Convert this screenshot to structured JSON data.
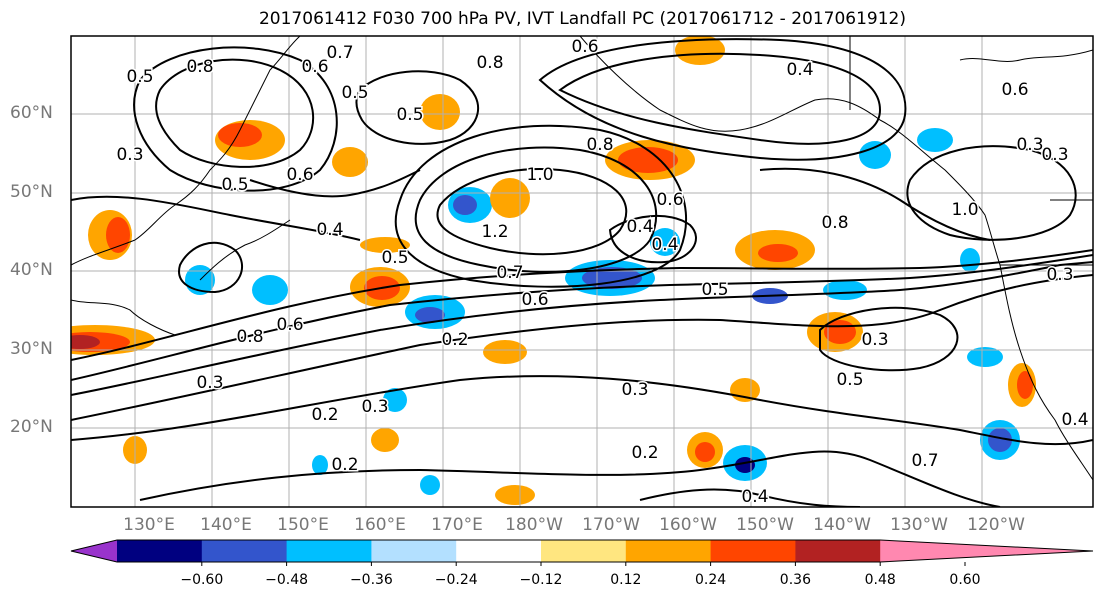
{
  "title": "2017061412 F030 700 hPa PV, IVT Landfall PC (2017061712 - 2017061912)",
  "map": {
    "region": "North Pacific",
    "lon_labels": [
      "130°E",
      "140°E",
      "150°E",
      "160°E",
      "170°E",
      "180°W",
      "170°W",
      "160°W",
      "150°W",
      "140°W",
      "130°W",
      "120°W"
    ],
    "lat_labels": [
      "60°N",
      "50°N",
      "40°N",
      "30°N",
      "20°N"
    ],
    "contour_labels": [
      "0.3",
      "0.5",
      "0.8",
      "0.7",
      "0.6",
      "0.5",
      "0.8",
      "0.5",
      "0.6",
      "0.4",
      "0.6",
      "0.3",
      "0.5",
      "0.4",
      "0.6",
      "0.8",
      "0.4",
      "1.0",
      "1.2",
      "0.6",
      "0.4",
      "0.7",
      "0.8",
      "1.0",
      "0.5",
      "0.6",
      "0.5",
      "0.2",
      "0.8",
      "0.6",
      "0.3",
      "0.3",
      "0.5",
      "0.2",
      "0.3",
      "0.2",
      "0.3",
      "0.2",
      "0.4",
      "0.7",
      "0.3",
      "0.4",
      "0.3"
    ],
    "contour_color": "#000000",
    "coast_color": "#000000",
    "grid_color": "#b0b0b0"
  },
  "colorbar": {
    "ticks": [
      "−0.60",
      "−0.48",
      "−0.36",
      "−0.24",
      "−0.12",
      "0.12",
      "0.24",
      "0.36",
      "0.48",
      "0.60"
    ],
    "colors": [
      "#9933cc",
      "#000080",
      "#3355cc",
      "#00bfff",
      "#b3e0ff",
      "#ffffff",
      "#ffe680",
      "#ffa500",
      "#ff4500",
      "#b22222",
      "#ff88b0"
    ],
    "extend": "both"
  }
}
